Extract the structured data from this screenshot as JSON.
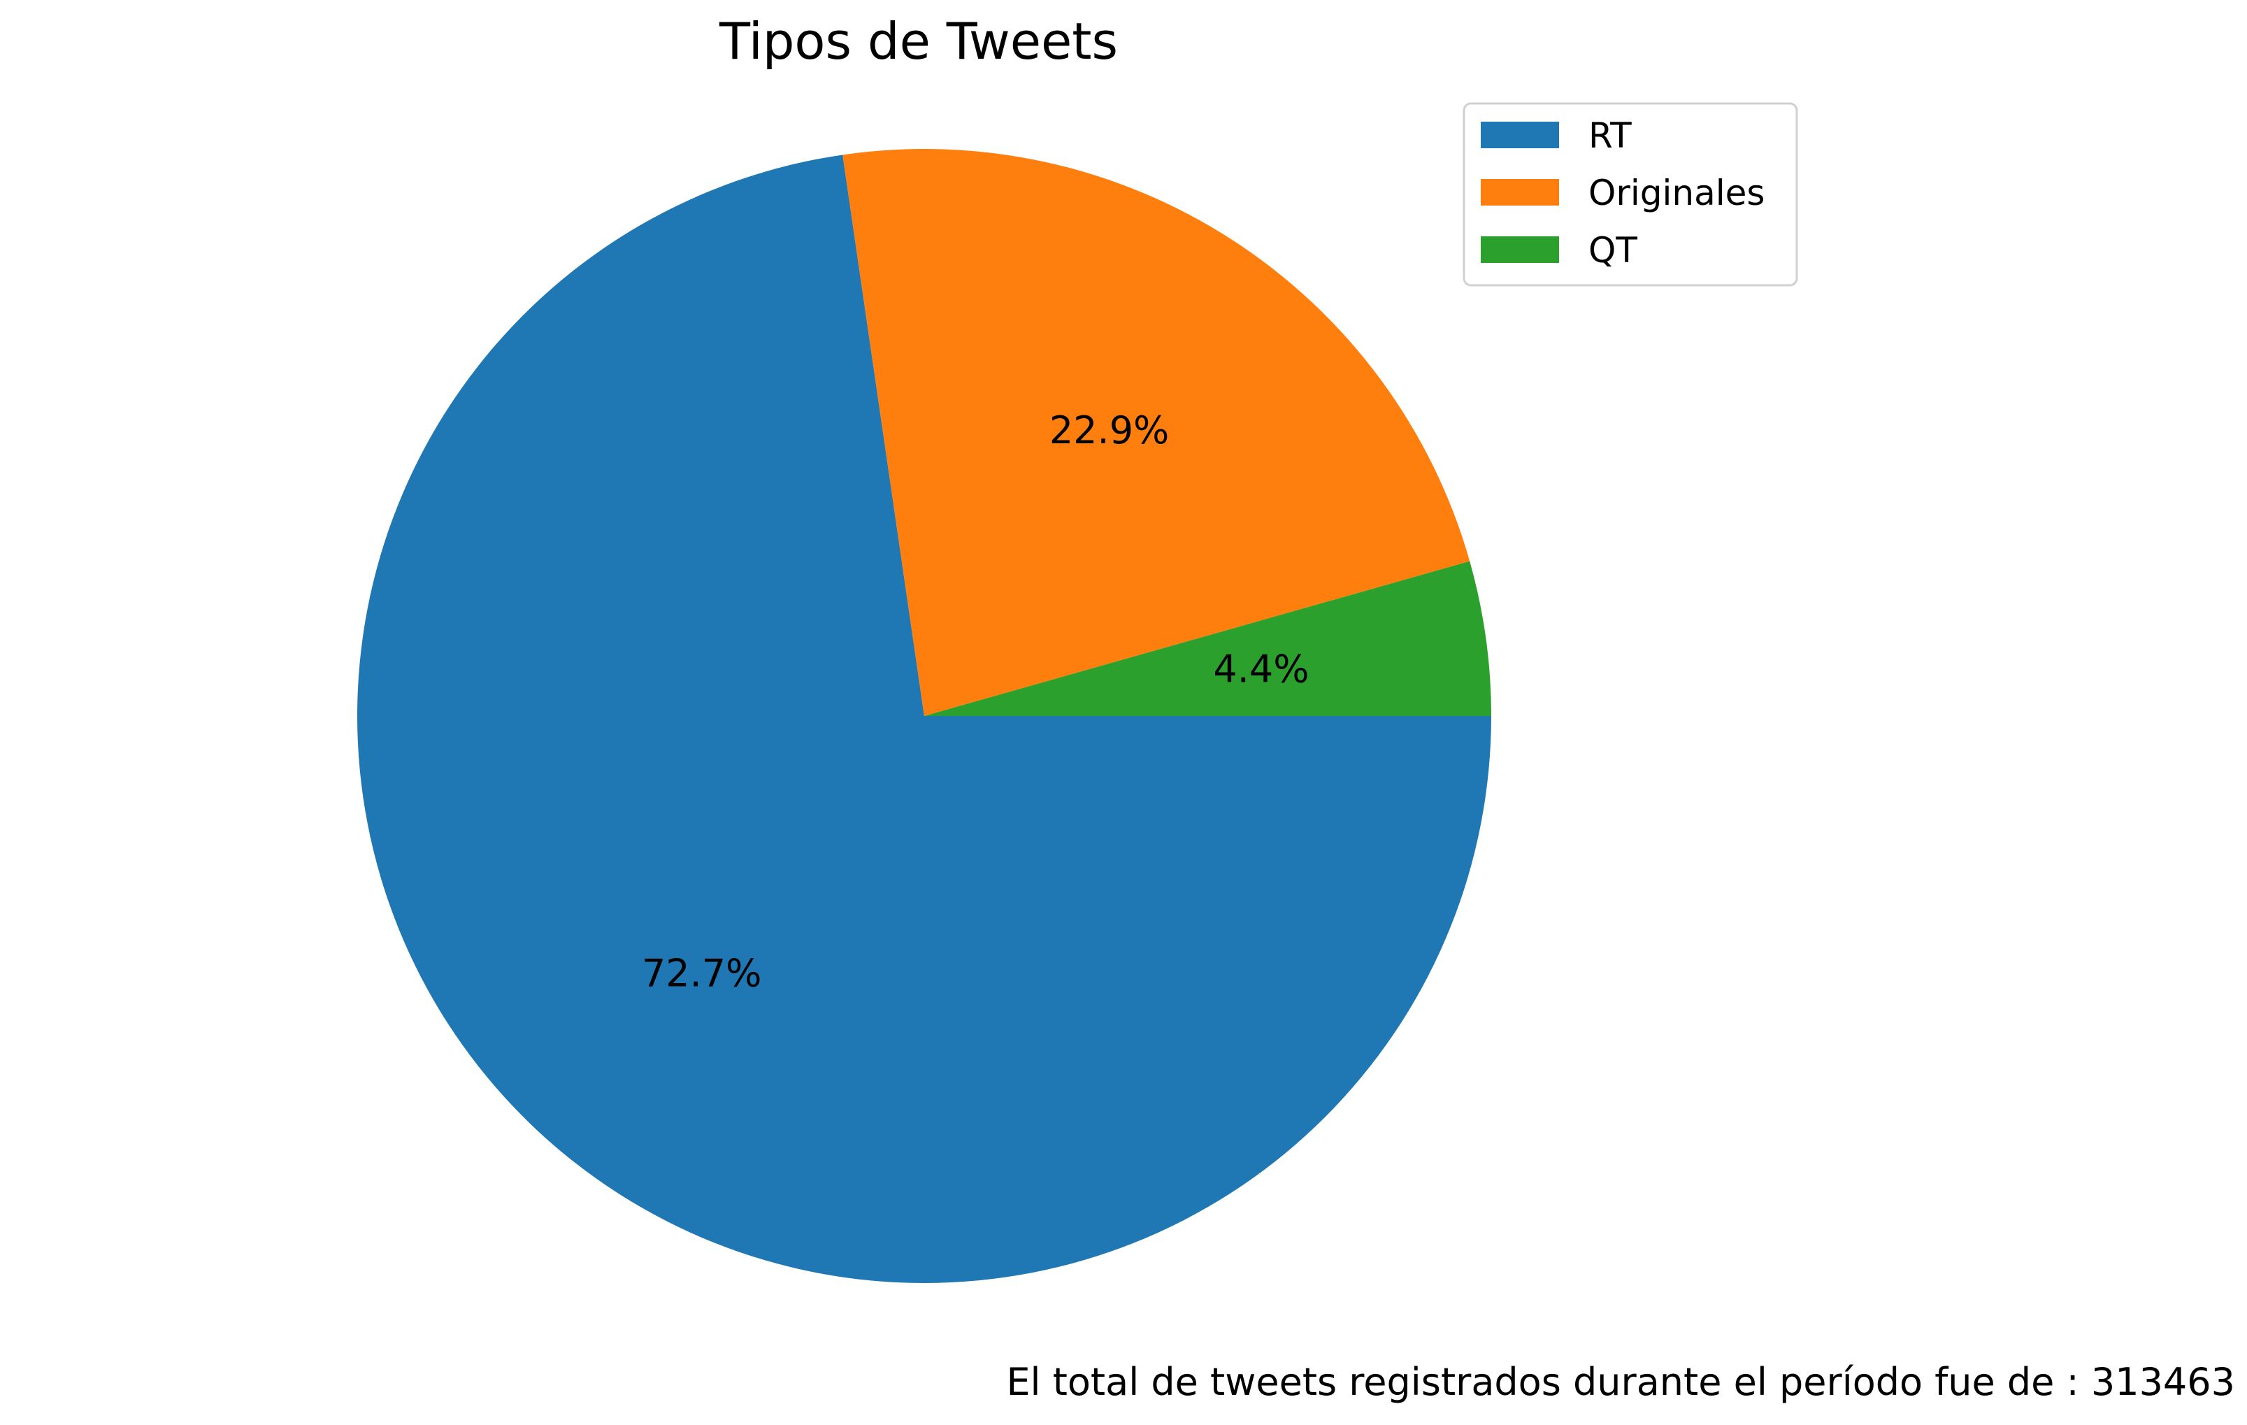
{
  "chart_data": {
    "type": "pie",
    "title": "Tipos de Tweets",
    "labels": [
      "RT",
      "Originales",
      "QT"
    ],
    "values": [
      72.7,
      22.9,
      4.4
    ],
    "pct_labels": [
      "72.7%",
      "22.9%",
      "4.4%"
    ],
    "colors": [
      "#1f77b4",
      "#ff7f0e",
      "#2ca02c"
    ],
    "start_angle_deg": 0,
    "direction": "clockwise",
    "legend_position": "top-right",
    "footnote": "El total de tweets registrados durante el período fue de : 313463"
  }
}
